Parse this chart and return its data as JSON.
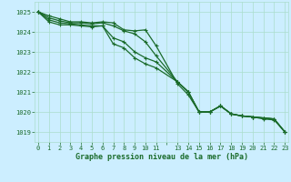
{
  "title": "Graphe pression niveau de la mer (hPa)",
  "bg_color": "#cceeff",
  "grid_color": "#aaddcc",
  "line_color": "#1a6b2a",
  "x_ticks": [
    0,
    1,
    2,
    3,
    4,
    5,
    6,
    7,
    8,
    9,
    10,
    11,
    13,
    14,
    15,
    16,
    17,
    18,
    19,
    20,
    21,
    22,
    23
  ],
  "ylim": [
    1018.5,
    1025.5
  ],
  "xlim": [
    -0.3,
    23.3
  ],
  "yticks": [
    1019,
    1020,
    1021,
    1022,
    1023,
    1024,
    1025
  ],
  "series": [
    [
      1025.0,
      1024.8,
      1024.65,
      1024.5,
      1024.5,
      1024.45,
      1024.5,
      1024.45,
      1024.1,
      1024.05,
      1024.1,
      1023.3,
      1021.4,
      1020.85,
      1020.0,
      1020.0,
      1020.3,
      1019.9,
      1019.8,
      1019.75,
      1019.65,
      1019.6,
      1019.0
    ],
    [
      1025.0,
      1024.7,
      1024.55,
      1024.45,
      1024.45,
      1024.4,
      1024.45,
      1024.3,
      1024.05,
      1023.9,
      1023.5,
      1022.8,
      1021.5,
      1021.0,
      1020.0,
      1020.0,
      1020.3,
      1019.9,
      1019.8,
      1019.75,
      1019.7,
      1019.65,
      1019.0
    ],
    [
      1025.0,
      1024.6,
      1024.45,
      1024.4,
      1024.35,
      1024.3,
      1024.3,
      1023.7,
      1023.5,
      1023.0,
      1022.7,
      1022.5,
      1021.5,
      1021.0,
      1020.0,
      1020.0,
      1020.3,
      1019.9,
      1019.8,
      1019.75,
      1019.7,
      1019.65,
      1019.0
    ],
    [
      1025.0,
      1024.5,
      1024.35,
      1024.35,
      1024.3,
      1024.25,
      1024.3,
      1023.4,
      1023.2,
      1022.7,
      1022.4,
      1022.2,
      1021.5,
      1021.0,
      1020.0,
      1020.0,
      1020.3,
      1019.9,
      1019.8,
      1019.75,
      1019.7,
      1019.65,
      1019.0
    ]
  ],
  "x_values": [
    0,
    1,
    2,
    3,
    4,
    5,
    6,
    7,
    8,
    9,
    10,
    11,
    13,
    14,
    15,
    16,
    17,
    18,
    19,
    20,
    21,
    22,
    23
  ],
  "marker": "+",
  "markersize": 3,
  "linewidth": 0.9,
  "title_fontsize": 6.0,
  "tick_fontsize": 5.0,
  "ytick_fontsize": 5.0
}
